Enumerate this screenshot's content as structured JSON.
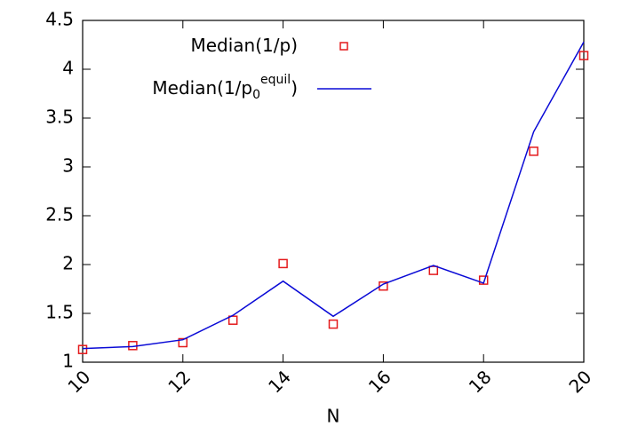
{
  "chart_data": {
    "type": "line",
    "x_label": "N",
    "x": [
      10,
      11,
      12,
      13,
      14,
      15,
      16,
      17,
      18,
      19,
      20
    ],
    "series": [
      {
        "name": [
          "Median(1/p)"
        ],
        "mode": "points",
        "color": "#e41a1c",
        "values": [
          1.13,
          1.17,
          1.2,
          1.43,
          2.01,
          1.39,
          1.78,
          1.94,
          1.84,
          3.16,
          4.14
        ]
      },
      {
        "name": [
          "Median(1/p",
          "0",
          "equil",
          ")"
        ],
        "mode": "line",
        "color": "#0a0ad6",
        "values": [
          1.14,
          1.16,
          1.23,
          1.48,
          1.83,
          1.47,
          1.8,
          1.99,
          1.81,
          3.36,
          4.28
        ]
      }
    ],
    "xlim": [
      10,
      20
    ],
    "xticks": [
      10,
      12,
      14,
      16,
      18,
      20
    ],
    "ylim": [
      1,
      4.5
    ],
    "yticks": [
      1,
      1.5,
      2,
      2.5,
      3,
      3.5,
      4,
      4.5
    ],
    "legend": "top"
  }
}
